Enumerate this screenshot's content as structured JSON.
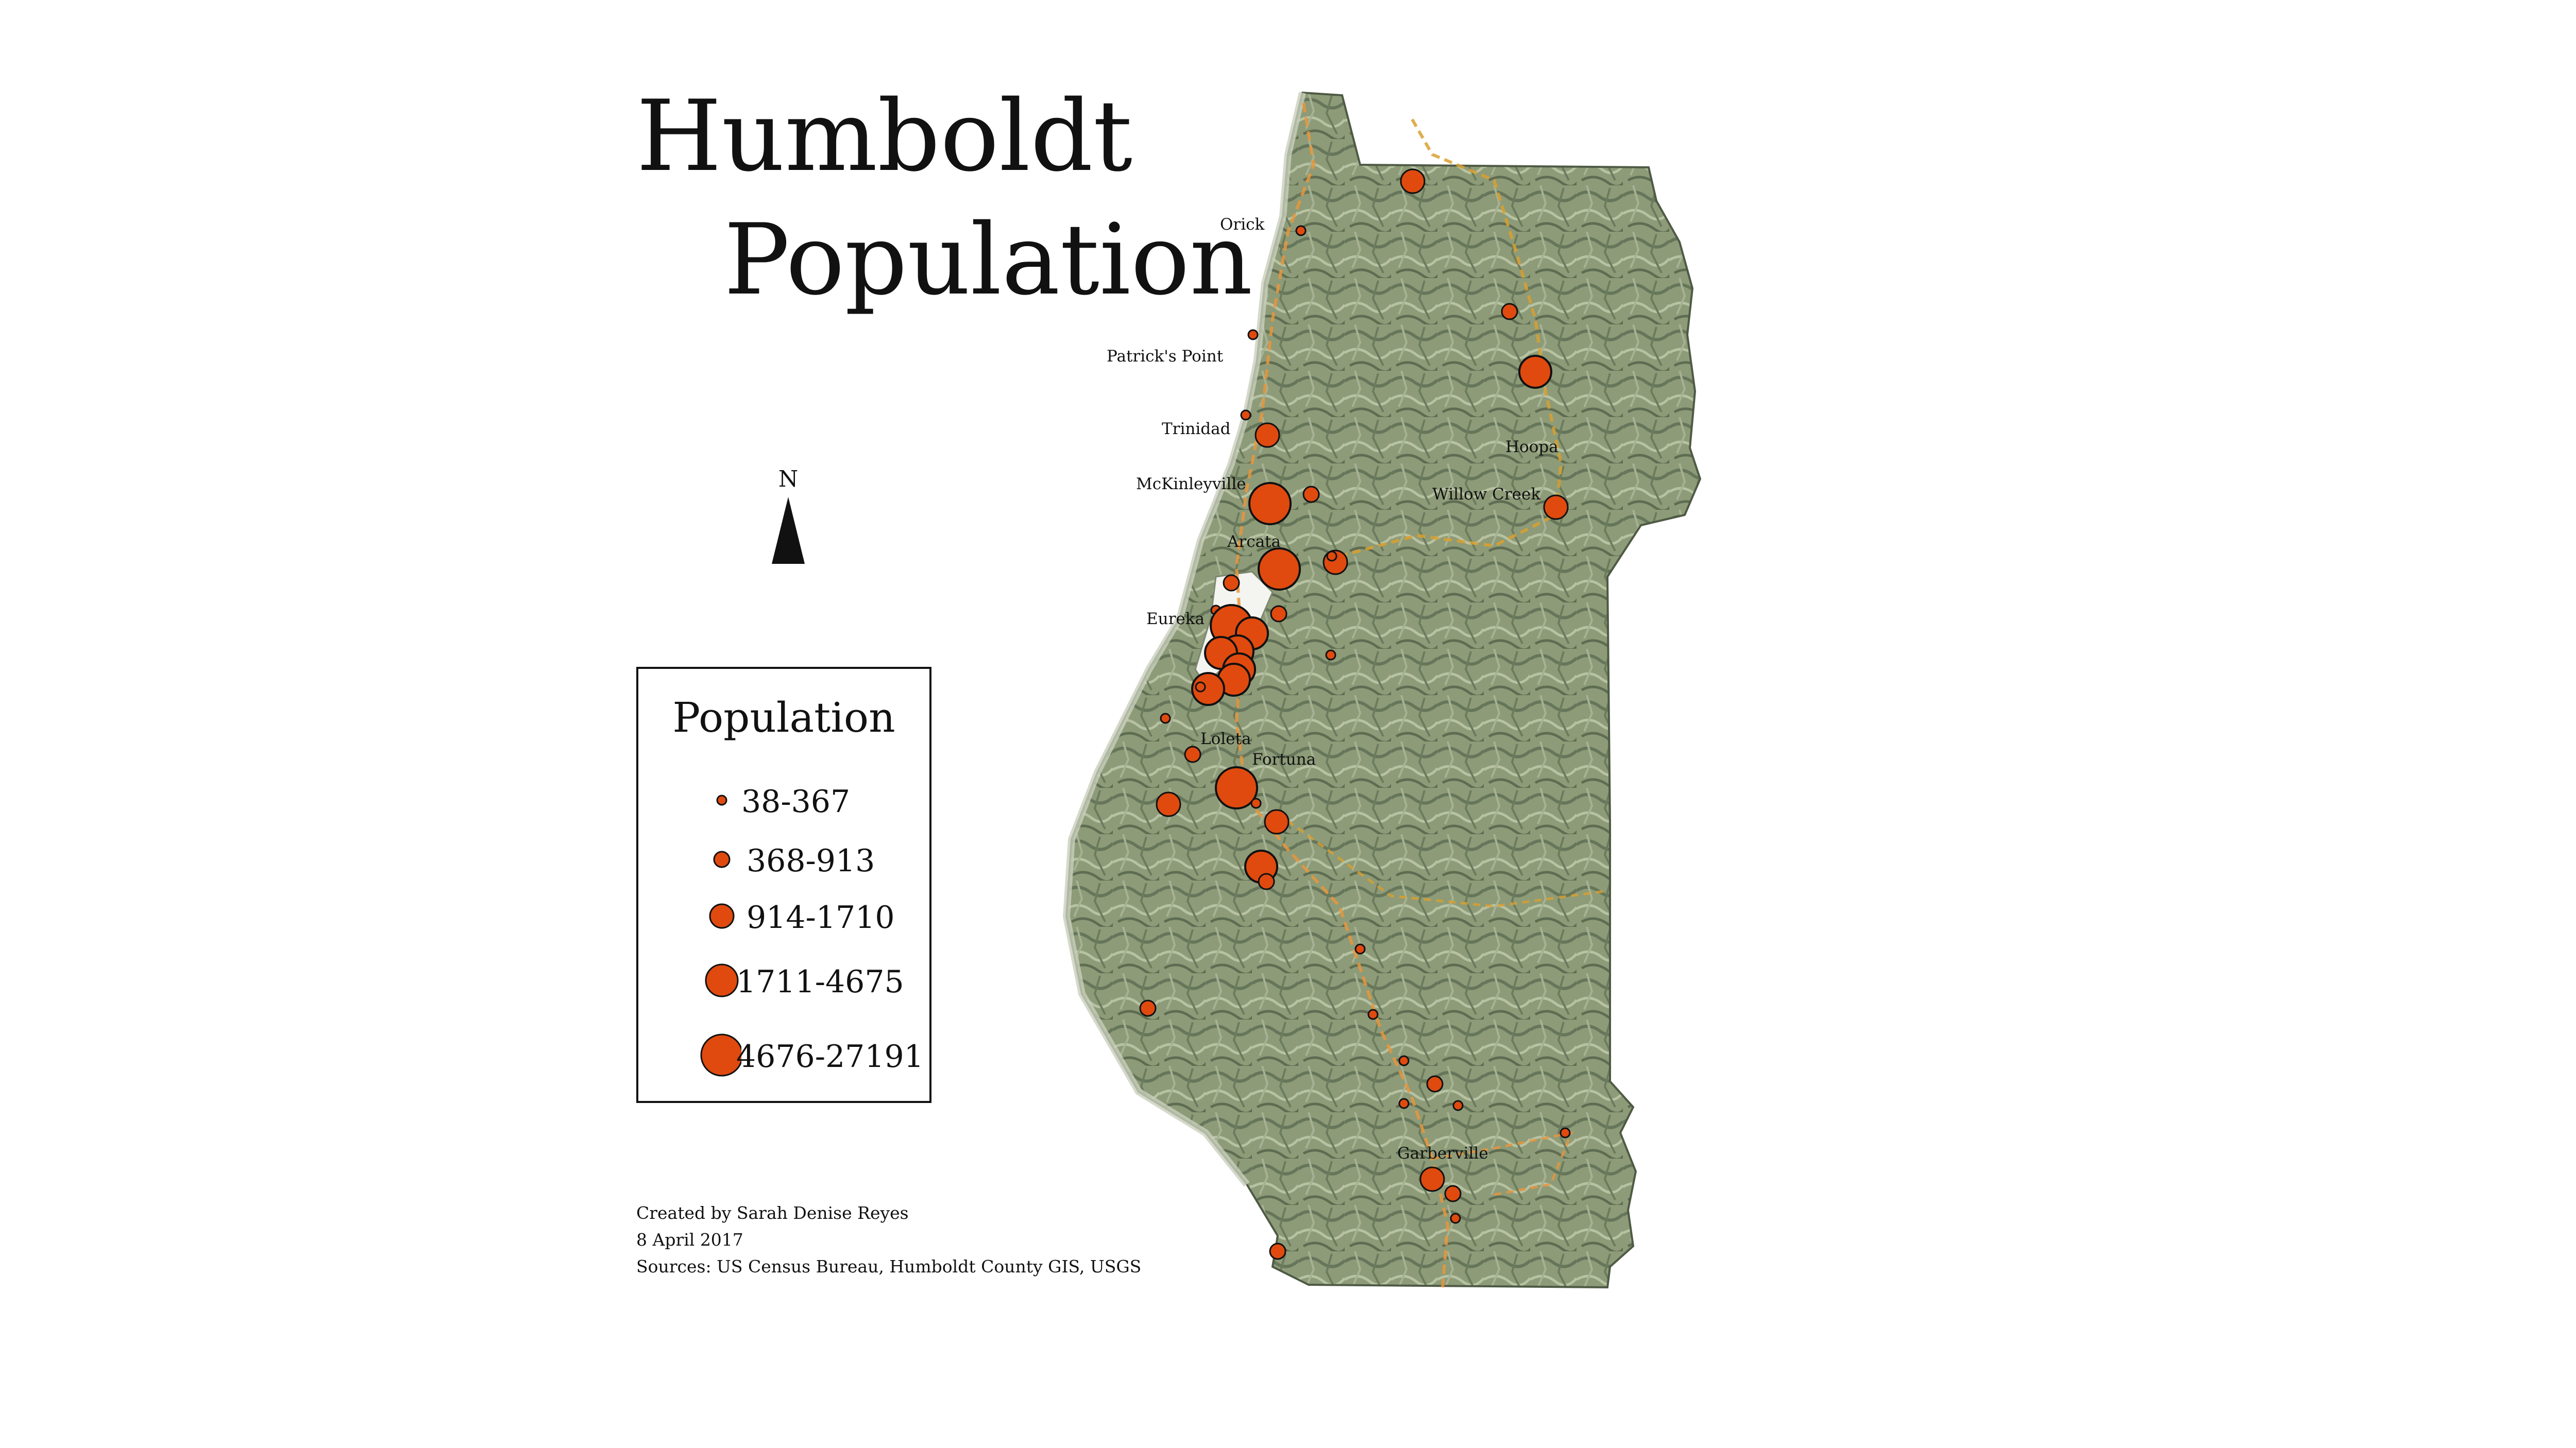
{
  "title": {
    "line1": "Humboldt",
    "line2": "Population"
  },
  "north_arrow": {
    "label": "N"
  },
  "legend": {
    "title": "Population",
    "classes": [
      {
        "label": "38-367",
        "level": 1
      },
      {
        "label": "368-913",
        "level": 2
      },
      {
        "label": "914-1710",
        "level": 3
      },
      {
        "label": "1711-4675",
        "level": 4
      },
      {
        "label": "4676-27191",
        "level": 5
      }
    ]
  },
  "credits": {
    "author": "Created by Sarah Denise Reyes",
    "date": "8 April 2017",
    "sources": "Sources: US Census Bureau, Humboldt County GIS, USGS"
  },
  "places": [
    {
      "name": "Orick"
    },
    {
      "name": "Patrick's Point"
    },
    {
      "name": "Trinidad"
    },
    {
      "name": "McKinleyville"
    },
    {
      "name": "Arcata"
    },
    {
      "name": "Eureka"
    },
    {
      "name": "Loleta"
    },
    {
      "name": "Fortuna"
    },
    {
      "name": "Hoopa"
    },
    {
      "name": "Willow Creek"
    },
    {
      "name": "Garberville"
    }
  ],
  "colors": {
    "symbol_fill": "#e04a0f",
    "symbol_stroke": "#111111",
    "land": "#8c9a77",
    "land_dark": "#5f6e52",
    "road": "#e8963c",
    "highway": "#d9a030"
  }
}
